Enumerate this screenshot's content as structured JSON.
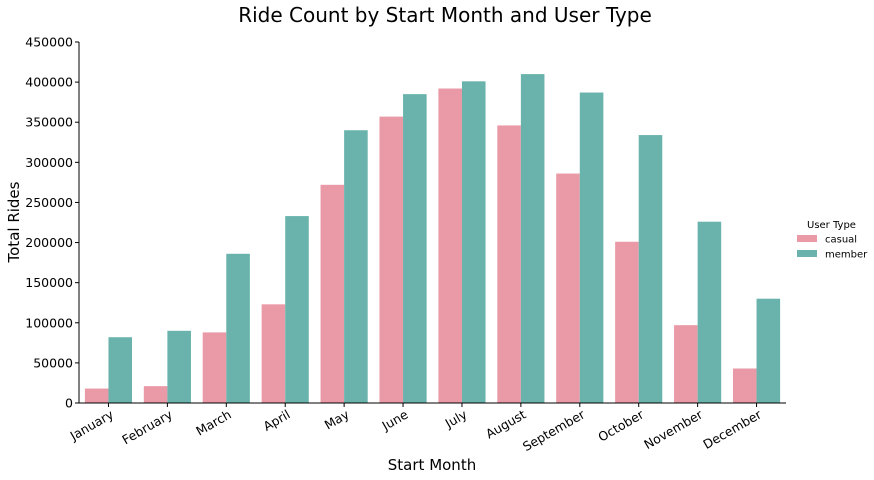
{
  "chart_data": {
    "type": "bar",
    "title": "Ride Count by Start Month and User Type",
    "xlabel": "Start Month",
    "ylabel": "Total Rides",
    "ylim": [
      0,
      450000
    ],
    "yticks": [
      "0",
      "50000",
      "100000",
      "150000",
      "200000",
      "250000",
      "300000",
      "350000",
      "400000",
      "450000"
    ],
    "categories": [
      "January",
      "February",
      "March",
      "April",
      "May",
      "June",
      "July",
      "August",
      "September",
      "October",
      "November",
      "December"
    ],
    "legend": {
      "title": "User Type",
      "placement": "right"
    },
    "grid": false,
    "series": [
      {
        "name": "casual",
        "color": "#ea99a7",
        "values": [
          18000,
          21000,
          88000,
          123000,
          272000,
          357000,
          392000,
          346000,
          286000,
          201000,
          97000,
          43000
        ]
      },
      {
        "name": "member",
        "color": "#69b3ac",
        "values": [
          82000,
          90000,
          186000,
          233000,
          340000,
          385000,
          401000,
          410000,
          387000,
          334000,
          226000,
          130000
        ]
      }
    ]
  }
}
